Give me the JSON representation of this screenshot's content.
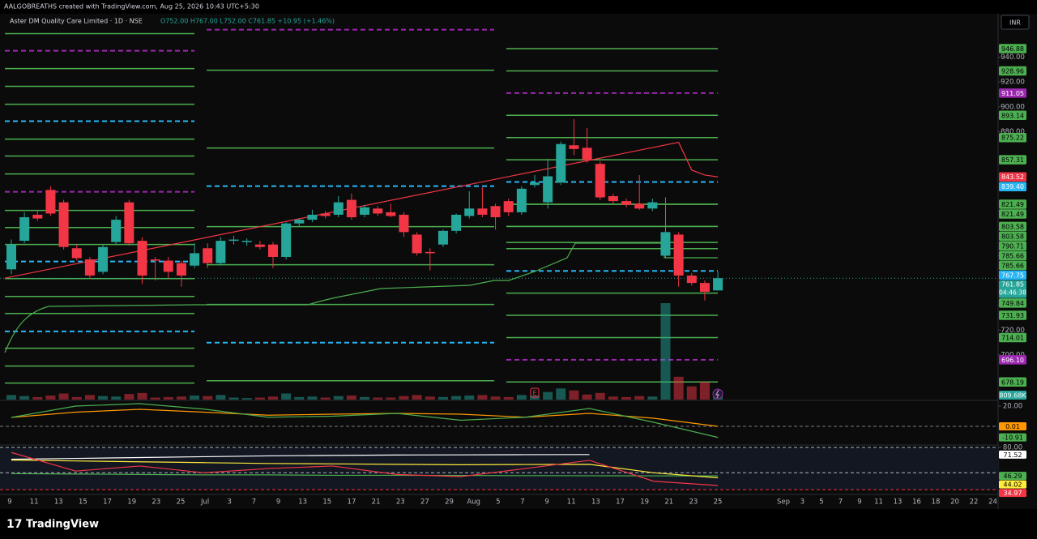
{
  "header": "AALGOBREATHS created with TradingView.com, Aug 25, 2026 10:43 UTC+5:30",
  "brand": "TradingView",
  "chart_data": [
    {
      "type": "candlestick",
      "title": "Aster DM Quality Care Limited · 1D · NSE",
      "ohlc_text": "O752.00 H767.00 L752.00 C761.85 +10.95 (+1.46%)",
      "currency": "INR",
      "countdown": "04:46:38",
      "earnings_marker": "E",
      "up_color": "#26a69a",
      "down_color": "#f23645",
      "x_labels": [
        "9",
        "11",
        "13",
        "15",
        "17",
        "19",
        "23",
        "25",
        "Jul",
        "3",
        "7",
        "9",
        "13",
        "15",
        "17",
        "21",
        "23",
        "27",
        "29",
        "Aug",
        "5",
        "7",
        "9",
        "11",
        "13",
        "17",
        "19",
        "21",
        "23",
        "25",
        "Sep",
        "3",
        "5",
        "7",
        "9",
        "11",
        "13",
        "16",
        "18",
        "20",
        "22",
        "24"
      ],
      "open": [
        769,
        792,
        813,
        833,
        823,
        786,
        777,
        767,
        791,
        823,
        792,
        777,
        776,
        774,
        772,
        786,
        774,
        792,
        791,
        789,
        789,
        779,
        806,
        809,
        814,
        813,
        825,
        813,
        818,
        815,
        813,
        797,
        783,
        789,
        800,
        812,
        818,
        820,
        824,
        815,
        837,
        823,
        839,
        869,
        867,
        854,
        828,
        824,
        822,
        818,
        780,
        797,
        764,
        758,
        752
      ],
      "high": [
        793,
        815,
        816,
        836,
        825,
        789,
        779,
        789,
        812,
        825,
        795,
        779,
        779,
        776,
        790,
        790,
        795,
        796,
        794,
        792,
        791,
        807,
        810,
        817,
        816,
        828,
        830,
        821,
        820,
        822,
        815,
        799,
        786,
        801,
        814,
        832,
        835,
        822,
        826,
        836,
        845,
        858,
        872,
        890,
        883,
        856,
        830,
        826,
        845,
        826,
        827,
        799,
        766,
        760,
        767
      ],
      "low": [
        765,
        790,
        808,
        812,
        785,
        776,
        761,
        765,
        789,
        788,
        757,
        760,
        762,
        755,
        770,
        770,
        772,
        789,
        788,
        785,
        770,
        777,
        803,
        807,
        810,
        811,
        809,
        811,
        812,
        811,
        795,
        780,
        768,
        787,
        798,
        810,
        811,
        801,
        812,
        813,
        835,
        818,
        837,
        861,
        855,
        825,
        822,
        819,
        817,
        816,
        778,
        755,
        756,
        744,
        752
      ],
      "close": [
        789,
        811,
        810,
        814,
        787,
        778,
        764,
        787,
        809,
        790,
        764,
        776,
        767,
        764,
        782,
        774,
        792,
        793,
        792,
        787,
        779,
        806,
        809,
        813,
        812,
        823,
        811,
        819,
        814,
        812,
        799,
        782,
        782,
        800,
        813,
        818,
        813,
        811,
        815,
        834,
        839,
        844,
        870,
        866,
        857,
        827,
        824,
        821,
        818,
        823,
        799,
        764,
        758,
        750.9,
        761.85
      ],
      "volume": [
        900000,
        700000,
        500000,
        800000,
        1200000,
        500000,
        900000,
        700000,
        600000,
        1100000,
        1300000,
        400000,
        500000,
        600000,
        800000,
        700000,
        900000,
        400000,
        300000,
        400000,
        600000,
        1200000,
        500000,
        600000,
        400000,
        700000,
        800000,
        500000,
        400000,
        400000,
        700000,
        900000,
        600000,
        500000,
        700000,
        800000,
        900000,
        600000,
        500000,
        900000,
        800000,
        1500000,
        2200000,
        1800000,
        1000000,
        1300000,
        600000,
        500000,
        700000,
        600000,
        19000000,
        4500000,
        2600000,
        3500000,
        809680
      ],
      "volume_ylim": [
        0,
        76000000
      ],
      "last_volume_label": "809.68K",
      "ylim": [
        664,
        975
      ],
      "yticks": [
        {
          "value": 940,
          "label": "940.00"
        },
        {
          "value": 920,
          "label": "920.00"
        },
        {
          "value": 900,
          "label": "900.00"
        },
        {
          "value": 880,
          "label": "880.00"
        },
        {
          "value": 780,
          "label": "780.00"
        },
        {
          "value": 740,
          "label": "740.00"
        },
        {
          "value": 720,
          "label": "720.00"
        },
        {
          "value": 700,
          "label": "700.00"
        }
      ],
      "trend": {
        "color": "#f23645",
        "values": [
          761.9,
          871.4,
          849,
          845,
          843.52
        ]
      },
      "level_sets": [
        {
          "levels": [
            {
              "value": 959,
              "color": "#4caf50"
            },
            {
              "value": 945.2,
              "color": "#9c27b0",
              "dashed": true
            },
            {
              "value": 930.8,
              "color": "#4caf50"
            },
            {
              "value": 916.5,
              "color": "#4caf50"
            },
            {
              "value": 902.1,
              "color": "#4caf50"
            },
            {
              "value": 888.4,
              "color": "#29b6f6",
              "dashed": true
            },
            {
              "value": 874,
              "color": "#4caf50"
            },
            {
              "value": 860.3,
              "color": "#4caf50"
            },
            {
              "value": 845.9,
              "color": "#4caf50"
            },
            {
              "value": 831.5,
              "color": "#9c27b0",
              "dashed": true
            },
            {
              "value": 816.5,
              "color": "#4caf50"
            },
            {
              "value": 802.7,
              "color": "#4caf50"
            },
            {
              "value": 789,
              "color": "#4caf50"
            },
            {
              "value": 775.3,
              "color": "#29b6f6",
              "dashed": true
            },
            {
              "value": 761.5,
              "color": "#4caf50"
            },
            {
              "value": 747.1,
              "color": "#4caf50"
            },
            {
              "value": 733.4,
              "color": "#4caf50"
            },
            {
              "value": 719,
              "color": "#29b6f6",
              "dashed": true
            },
            {
              "value": 705.4,
              "color": "#4caf50"
            },
            {
              "value": 691,
              "color": "#4caf50"
            },
            {
              "value": 677.3,
              "color": "#4caf50"
            }
          ]
        },
        {
          "levels": [
            {
              "value": 962.2,
              "color": "#9c27b0",
              "dashed": true
            },
            {
              "value": 929.5,
              "color": "#4caf50"
            },
            {
              "value": 866.8,
              "color": "#4caf50"
            },
            {
              "value": 836.1,
              "color": "#29b6f6",
              "dashed": true
            },
            {
              "value": 803.4,
              "color": "#4caf50"
            },
            {
              "value": 772.7,
              "color": "#4caf50"
            },
            {
              "value": 740.7,
              "color": "#4caf50"
            },
            {
              "value": 709.9,
              "color": "#29b6f6",
              "dashed": true
            },
            {
              "value": 679.2,
              "color": "#4caf50"
            }
          ]
        },
        {
          "levels": [
            {
              "value": 946.88,
              "label": "946.88",
              "color": "#4caf50"
            },
            {
              "value": 928.96,
              "label": "928.96",
              "color": "#4caf50"
            },
            {
              "value": 911.05,
              "label": "911.05",
              "color": "#9c27b0",
              "dashed": true
            },
            {
              "value": 893.14,
              "label": "893.14",
              "color": "#4caf50"
            },
            {
              "value": 875.22,
              "label": "875.22",
              "color": "#4caf50"
            },
            {
              "value": 857.31,
              "label": "857.31",
              "color": "#4caf50"
            },
            {
              "value": 839.4,
              "label": "839.40",
              "color": "#29b6f6",
              "dashed": true
            },
            {
              "value": 821.49,
              "label": "821.49",
              "color": "#4caf50"
            },
            {
              "value": 821.49,
              "label": "821.49",
              "color": "#4caf50"
            },
            {
              "value": 803.58,
              "label": "803.58",
              "color": "#4caf50"
            },
            {
              "value": 803.58,
              "label": "803.58",
              "color": "#4caf50"
            },
            {
              "value": 790.71,
              "label": "790.71",
              "color": "#4caf50"
            },
            {
              "value": 785.66,
              "label": "785.66",
              "color": "#4caf50"
            },
            {
              "value": 785.66,
              "label": "785.66",
              "color": "#4caf50"
            },
            {
              "value": 767.75,
              "label": "767.75",
              "color": "#29b6f6",
              "dashed": true
            },
            {
              "value": 749.84,
              "label": "749.84",
              "color": "#4caf50"
            },
            {
              "value": 731.93,
              "label": "731.93",
              "color": "#4caf50"
            },
            {
              "value": 714.01,
              "label": "714.01",
              "color": "#4caf50"
            },
            {
              "value": 696.1,
              "label": "696.10",
              "color": "#9c27b0",
              "dashed": true
            },
            {
              "value": 678.19,
              "label": "678.19",
              "color": "#4caf50"
            }
          ]
        }
      ]
    },
    {
      "type": "line",
      "ylim": [
        -17.6,
        24.8
      ],
      "yticks": [
        {
          "value": 20,
          "label": "20.00"
        }
      ],
      "hlines": [
        {
          "value": 0,
          "color": "#787b86"
        }
      ],
      "series": [
        {
          "color": "#ff9800",
          "values": [
            8.8,
            14,
            16.8,
            14,
            11,
            12,
            12.8,
            12,
            9,
            12.8,
            8,
            0.01
          ]
        },
        {
          "color": "#4caf50",
          "values": [
            8.8,
            20,
            22.4,
            17,
            9,
            10,
            12.8,
            6,
            9,
            17.6,
            4,
            -10.91
          ]
        }
      ]
    },
    {
      "type": "line",
      "ylim": [
        24.4,
        81.9
      ],
      "yticks": [
        {
          "value": 80,
          "label": "80.00"
        }
      ],
      "hlines": [
        {
          "value": 80,
          "color": "#b2b5be"
        },
        {
          "value": 50,
          "color": "#b2b5be"
        },
        {
          "value": 30,
          "color": "#f23645"
        }
      ],
      "series": [
        {
          "color": "#ffffff",
          "values": [
            66,
            67,
            68,
            69,
            70,
            70.5,
            71,
            71.2,
            71.4,
            71.52,
            null,
            null
          ]
        },
        {
          "color": "#4caf50",
          "values": [
            49,
            48.5,
            48,
            47.5,
            47.5,
            47,
            47,
            46.8,
            46.6,
            46.5,
            46.4,
            46.29
          ]
        },
        {
          "color": "#ffeb3b",
          "values": [
            65,
            64,
            63,
            62,
            61,
            60.5,
            60,
            59.5,
            59.8,
            60,
            50,
            44.02
          ]
        },
        {
          "color": "#f23645",
          "values": [
            74,
            52,
            58,
            50,
            55,
            58,
            48,
            45.5,
            55,
            64.7,
            40,
            34.97
          ]
        }
      ]
    }
  ]
}
